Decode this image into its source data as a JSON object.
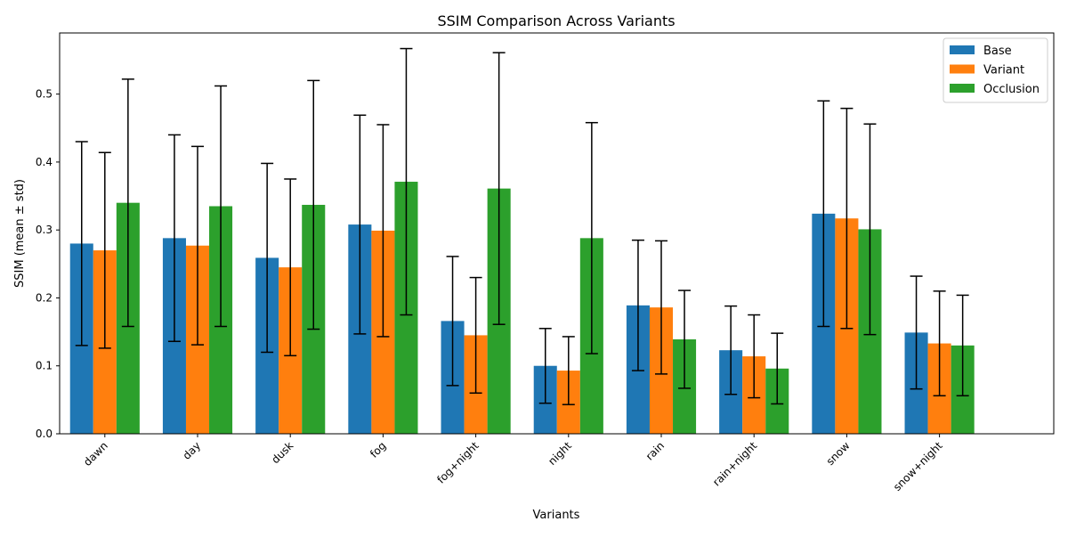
{
  "chart_data": {
    "type": "bar",
    "title": "SSIM Comparison Across Variants",
    "xlabel": "Variants",
    "ylabel": "SSIM (mean ± std)",
    "ylim": [
      0,
      0.59
    ],
    "yticks": [
      0.0,
      0.1,
      0.2,
      0.3,
      0.4,
      0.5
    ],
    "ytick_labels": [
      "0.0",
      "0.1",
      "0.2",
      "0.3",
      "0.4",
      "0.5"
    ],
    "grid": false,
    "legend_position": "top-right",
    "categories": [
      "dawn",
      "day",
      "dusk",
      "fog",
      "fog+night",
      "night",
      "rain",
      "rain+night",
      "snow",
      "snow+night"
    ],
    "series": [
      {
        "name": "Base",
        "color": "#1f77b4",
        "values": [
          0.28,
          0.288,
          0.259,
          0.308,
          0.166,
          0.1,
          0.189,
          0.123,
          0.324,
          0.149
        ],
        "std": [
          0.15,
          0.152,
          0.139,
          0.161,
          0.095,
          0.055,
          0.096,
          0.065,
          0.166,
          0.083
        ]
      },
      {
        "name": "Variant",
        "color": "#ff7f0e",
        "values": [
          0.27,
          0.277,
          0.245,
          0.299,
          0.145,
          0.093,
          0.186,
          0.114,
          0.317,
          0.133
        ],
        "std": [
          0.144,
          0.146,
          0.13,
          0.156,
          0.085,
          0.05,
          0.098,
          0.061,
          0.162,
          0.077
        ]
      },
      {
        "name": "Occlusion",
        "color": "#2ca02c",
        "values": [
          0.34,
          0.335,
          0.337,
          0.371,
          0.361,
          0.288,
          0.139,
          0.096,
          0.301,
          0.13
        ],
        "std": [
          0.182,
          0.177,
          0.183,
          0.196,
          0.2,
          0.17,
          0.072,
          0.052,
          0.155,
          0.074
        ]
      }
    ]
  }
}
